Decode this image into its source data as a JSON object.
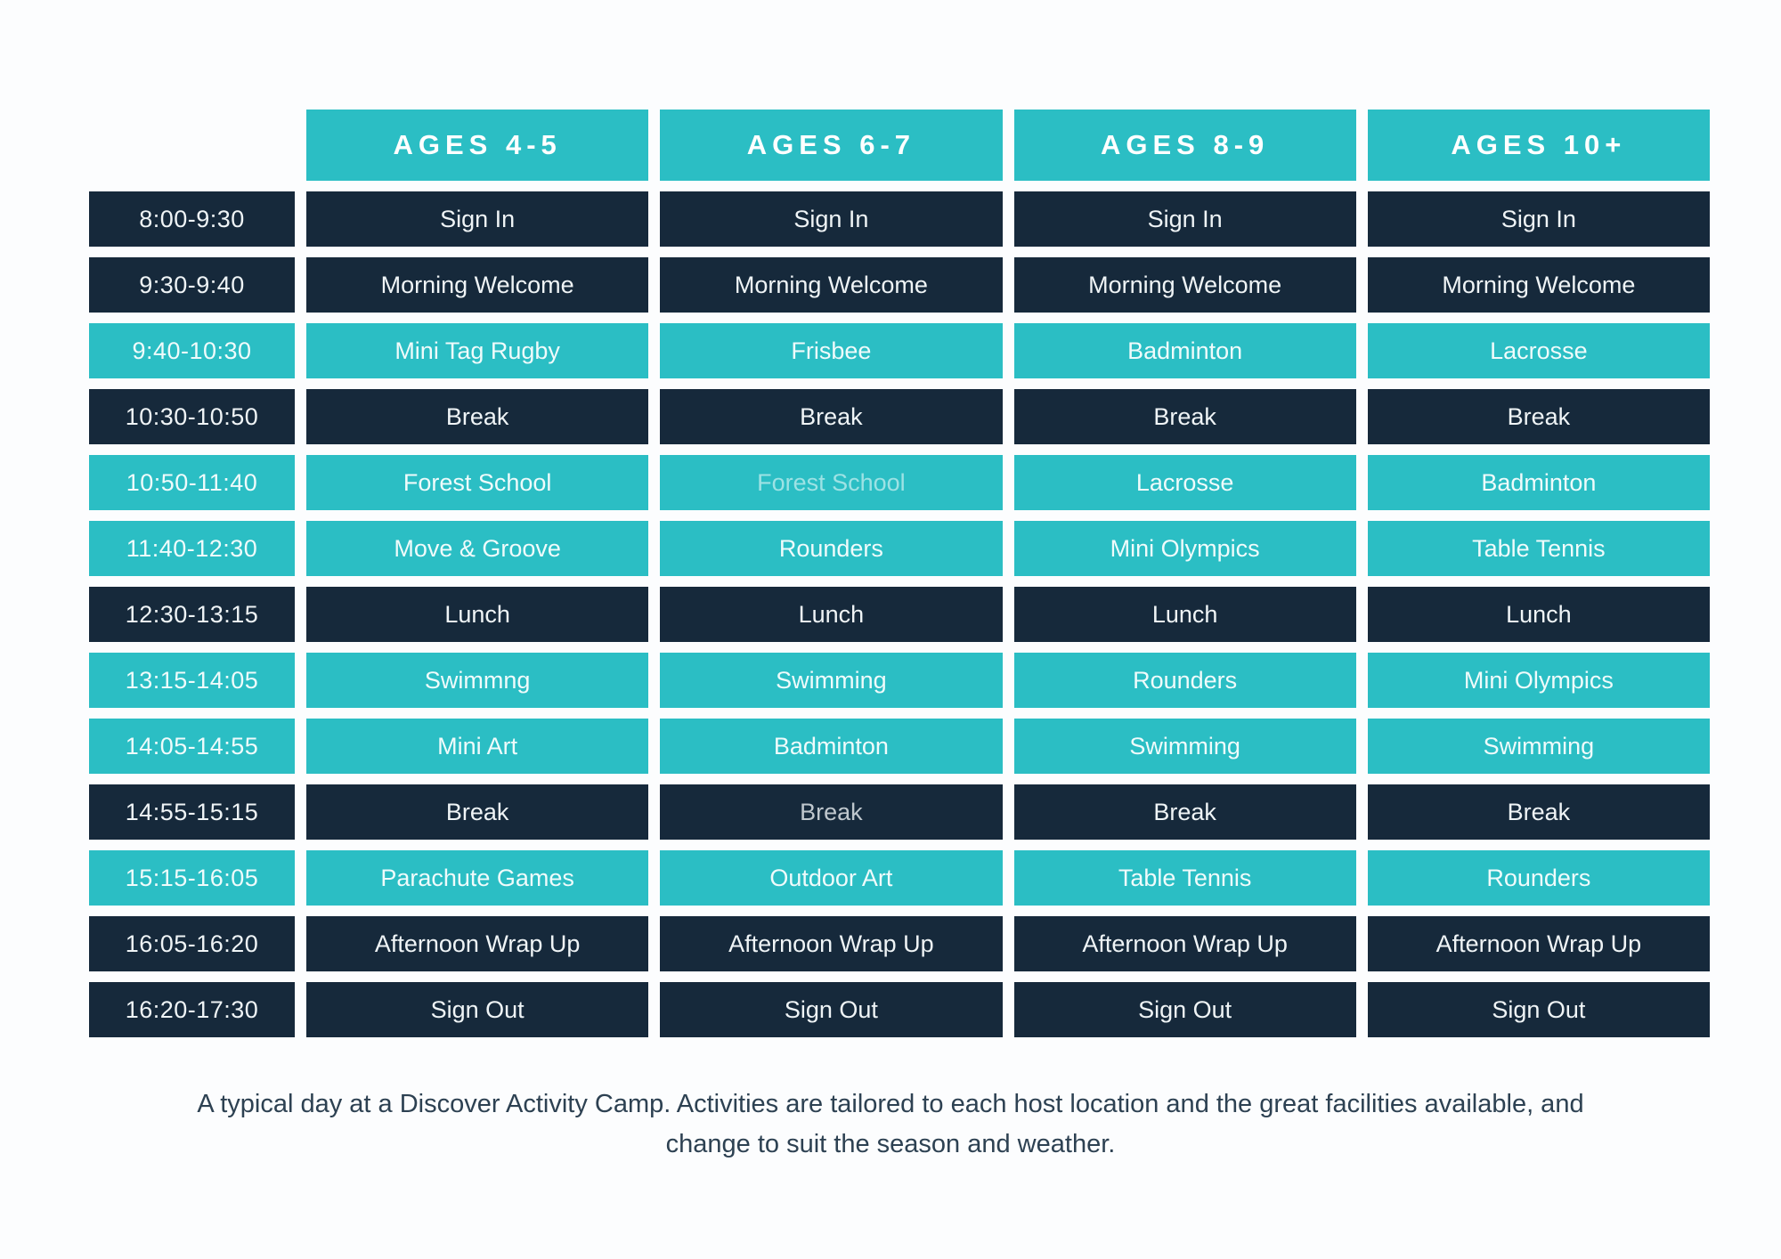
{
  "colors": {
    "teal": "#2bbec4",
    "navy": "#16293b",
    "background": "#fcfdfe",
    "footer_text": "#2d4152"
  },
  "table": {
    "columns": [
      "AGES 4-5",
      "AGES 6-7",
      "AGES 8-9",
      "AGES 10+"
    ],
    "rows": [
      {
        "time": "8:00-9:30",
        "theme": "dark",
        "cells": [
          "Sign In",
          "Sign In",
          "Sign In",
          "Sign In"
        ]
      },
      {
        "time": "9:30-9:40",
        "theme": "dark",
        "cells": [
          "Morning Welcome",
          "Morning Welcome",
          "Morning Welcome",
          "Morning Welcome"
        ]
      },
      {
        "time": "9:40-10:30",
        "theme": "teal",
        "cells": [
          "Mini Tag Rugby",
          "Frisbee",
          "Badminton",
          "Lacrosse"
        ]
      },
      {
        "time": "10:30-10:50",
        "theme": "dark",
        "cells": [
          "Break",
          "Break",
          "Break",
          "Break"
        ]
      },
      {
        "time": "10:50-11:40",
        "theme": "teal",
        "cells": [
          "Forest School",
          "Forest School",
          "Lacrosse",
          "Badminton"
        ],
        "muted_cols": [
          1
        ]
      },
      {
        "time": "11:40-12:30",
        "theme": "teal",
        "cells": [
          "Move & Groove",
          "Rounders",
          "Mini Olympics",
          "Table Tennis"
        ]
      },
      {
        "time": "12:30-13:15",
        "theme": "dark",
        "cells": [
          "Lunch",
          "Lunch",
          "Lunch",
          "Lunch"
        ]
      },
      {
        "time": "13:15-14:05",
        "theme": "teal",
        "cells": [
          "Swimmng",
          "Swimming",
          "Rounders",
          "Mini Olympics"
        ]
      },
      {
        "time": "14:05-14:55",
        "theme": "teal",
        "cells": [
          "Mini Art",
          "Badminton",
          "Swimming",
          "Swimming"
        ]
      },
      {
        "time": "14:55-15:15",
        "theme": "dark",
        "cells": [
          "Break",
          "Break",
          "Break",
          "Break"
        ],
        "muted_cols": [
          1
        ]
      },
      {
        "time": "15:15-16:05",
        "theme": "teal",
        "cells": [
          "Parachute Games",
          "Outdoor Art",
          "Table Tennis",
          "Rounders"
        ]
      },
      {
        "time": "16:05-16:20",
        "theme": "dark",
        "cells": [
          "Afternoon Wrap Up",
          "Afternoon Wrap Up",
          "Afternoon Wrap Up",
          "Afternoon Wrap Up"
        ]
      },
      {
        "time": "16:20-17:30",
        "theme": "dark",
        "cells": [
          "Sign Out",
          "Sign Out",
          "Sign Out",
          "Sign Out"
        ]
      }
    ]
  },
  "footer": {
    "caption": "A typical day at a Discover Activity Camp. Activities are tailored to each host location and the great facilities available,  and change to suit the season and weather."
  }
}
